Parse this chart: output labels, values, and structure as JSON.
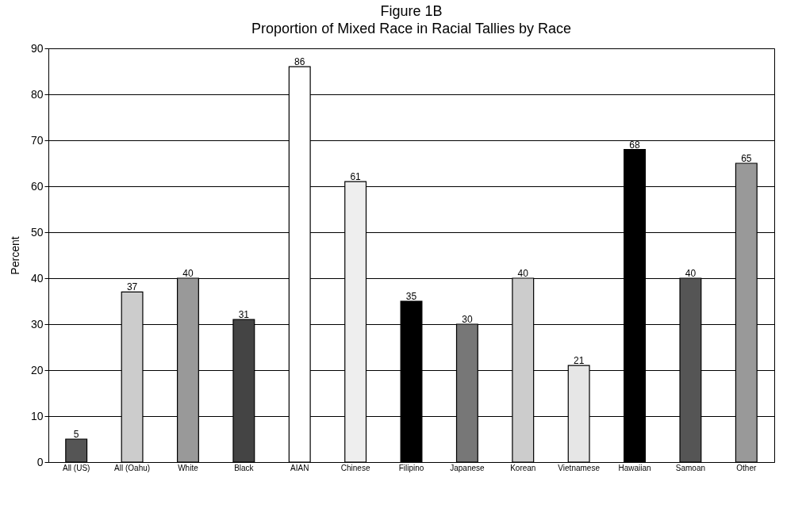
{
  "chart_data": {
    "type": "bar",
    "title": "Figure 1B",
    "subtitle": "Proportion of Mixed Race in Racial Tallies by Race",
    "ylabel": "Percent",
    "categories": [
      "All (US)",
      "All (Oahu)",
      "White",
      "Black",
      "AIAN",
      "Chinese",
      "Filipino",
      "Japanese",
      "Korean",
      "Vietnamese",
      "Hawaiian",
      "Samoan",
      "Other"
    ],
    "values": [
      5,
      37,
      40,
      31,
      86,
      61,
      35,
      30,
      40,
      21,
      68,
      40,
      65
    ],
    "colors": [
      "#555555",
      "#cccccc",
      "#999999",
      "#444444",
      "#ffffff",
      "#eeeeee",
      "#000000",
      "#777777",
      "#cccccc",
      "#e6e6e6",
      "#000000",
      "#555555",
      "#999999"
    ],
    "ylim": [
      0,
      90
    ],
    "yticks": [
      0,
      10,
      20,
      30,
      40,
      50,
      60,
      70,
      80,
      90
    ],
    "grid": "y",
    "data_labels": true
  }
}
